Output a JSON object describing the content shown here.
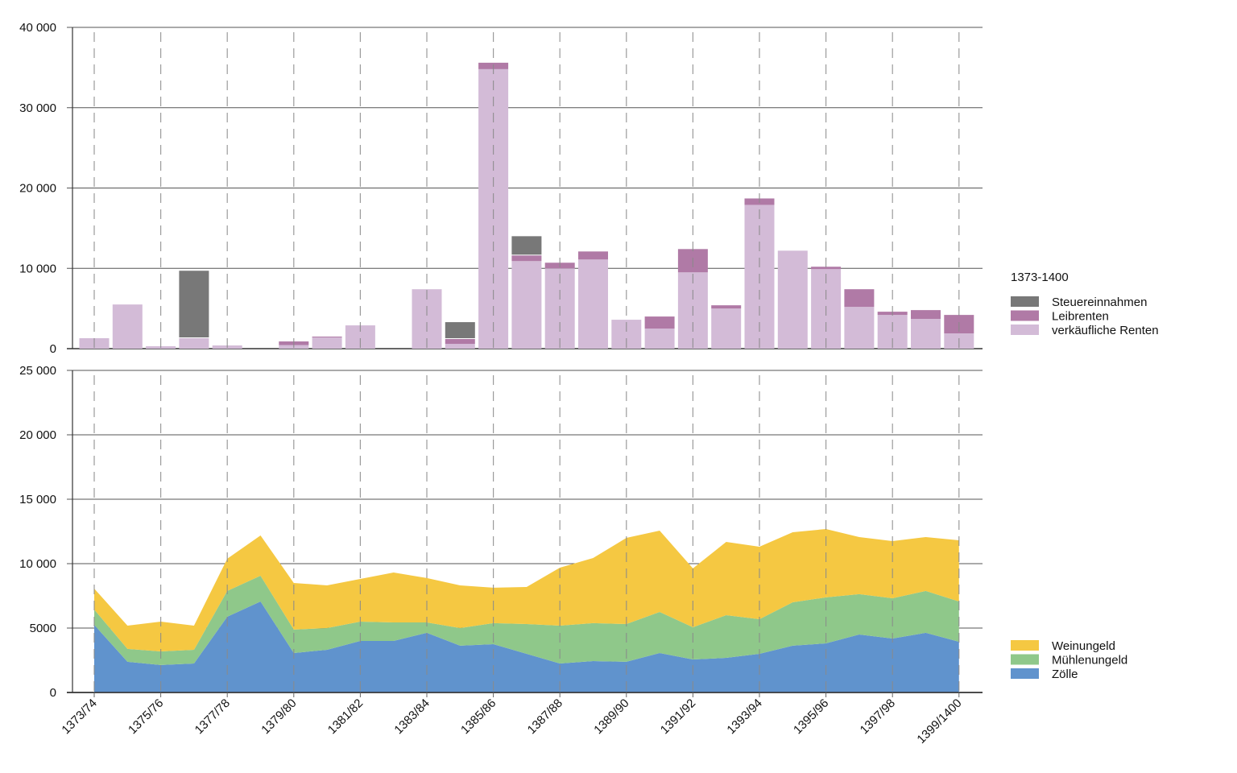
{
  "chart_data": [
    {
      "type": "bar",
      "stacked": true,
      "categories": [
        "1373/74",
        "1374/75",
        "1375/76",
        "1376/77",
        "1377/78",
        "1378/79",
        "1379/80",
        "1380/81",
        "1381/82",
        "1382/83",
        "1383/84",
        "1384/85",
        "1385/86",
        "1386/87",
        "1387/88",
        "1388/89",
        "1389/90",
        "1390/91",
        "1391/92",
        "1392/93",
        "1393/94",
        "1394/95",
        "1395/96",
        "1396/97",
        "1397/98",
        "1398/99",
        "1399/1400"
      ],
      "xtick_labels": [
        "1373/74",
        "1375/76",
        "1377/78",
        "1379/80",
        "1381/82",
        "1383/84",
        "1385/86",
        "1387/88",
        "1389/90",
        "1391/92",
        "1393/94",
        "1395/96",
        "1397/98",
        "1399/1400"
      ],
      "ylim": [
        0,
        40000
      ],
      "ytick_labels": [
        "0",
        "10 000",
        "20 000",
        "30 000",
        "40 000"
      ],
      "yticks": [
        0,
        10000,
        20000,
        30000,
        40000
      ],
      "grid": true,
      "legend_title": "1373-1400",
      "legend_position": "right",
      "series": [
        {
          "name": "verkäufliche Renten",
          "color": "#d3bbd7",
          "values": [
            1300,
            5500,
            300,
            1300,
            400,
            0,
            450,
            1400,
            2900,
            0,
            7400,
            600,
            34800,
            10900,
            10000,
            11100,
            3600,
            2500,
            9500,
            5000,
            17900,
            12200,
            9900,
            5200,
            4200,
            3700,
            1900
          ]
        },
        {
          "name": "Leibrenten",
          "color": "#b07aa6",
          "values": [
            0,
            0,
            0,
            0,
            0,
            0,
            450,
            100,
            0,
            0,
            0,
            600,
            800,
            700,
            700,
            1000,
            0,
            1500,
            2900,
            400,
            800,
            0,
            300,
            2200,
            400,
            1100,
            2300
          ]
        },
        {
          "name": "Steuereinnahmen",
          "color": "#787878",
          "values": [
            0,
            0,
            0,
            8400,
            0,
            0,
            0,
            0,
            0,
            0,
            0,
            2100,
            0,
            2400,
            0,
            0,
            0,
            0,
            0,
            0,
            0,
            0,
            0,
            0,
            0,
            0,
            0
          ]
        }
      ],
      "legend_order": [
        "Steuereinnahmen",
        "Leibrenten",
        "verkäufliche Renten"
      ]
    },
    {
      "type": "area",
      "stacked": true,
      "categories": [
        "1373/74",
        "1374/75",
        "1375/76",
        "1376/77",
        "1377/78",
        "1378/79",
        "1379/80",
        "1380/81",
        "1381/82",
        "1382/83",
        "1383/84",
        "1384/85",
        "1385/86",
        "1386/87",
        "1387/88",
        "1388/89",
        "1389/90",
        "1390/91",
        "1391/92",
        "1392/93",
        "1393/94",
        "1394/95",
        "1395/96",
        "1396/97",
        "1397/98",
        "1398/99",
        "1399/1400"
      ],
      "ylim": [
        0,
        25000
      ],
      "ytick_labels": [
        "0",
        "5000",
        "10 000",
        "15 000",
        "20 000",
        "25 000"
      ],
      "yticks": [
        0,
        5000,
        10000,
        15000,
        20000,
        25000
      ],
      "grid": true,
      "legend_position": "right",
      "series": [
        {
          "name": "Zölle",
          "color": "#6093cd",
          "values": [
            5250,
            2380,
            2130,
            2250,
            5880,
            7060,
            3060,
            3310,
            4000,
            4000,
            4630,
            3630,
            3750,
            3000,
            2250,
            2440,
            2380,
            3060,
            2560,
            2690,
            3000,
            3630,
            3810,
            4500,
            4190,
            4630,
            3940
          ]
        },
        {
          "name": "Mühlenungeld",
          "color": "#8fc88a",
          "values": [
            1190,
            1000,
            1060,
            1060,
            2000,
            2000,
            1820,
            1690,
            1500,
            1440,
            810,
            1370,
            1630,
            2310,
            2940,
            2940,
            2930,
            3190,
            2500,
            3310,
            2690,
            3370,
            3570,
            3130,
            3120,
            3250,
            3120
          ]
        },
        {
          "name": "Weinungeld",
          "color": "#f5c842",
          "values": [
            1620,
            1810,
            2310,
            1880,
            2500,
            3130,
            3620,
            3310,
            3310,
            3870,
            3440,
            3310,
            2750,
            2880,
            4500,
            5060,
            6690,
            6310,
            4570,
            5690,
            5620,
            5440,
            5310,
            4430,
            4440,
            4180,
            4750
          ]
        }
      ],
      "legend_order": [
        "Weinungeld",
        "Mühlenungeld",
        "Zölle"
      ]
    }
  ]
}
